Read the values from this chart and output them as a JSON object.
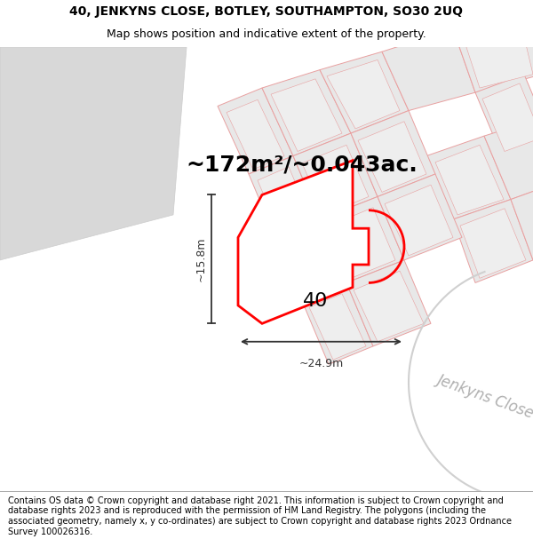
{
  "title_line1": "40, JENKYNS CLOSE, BOTLEY, SOUTHAMPTON, SO30 2UQ",
  "title_line2": "Map shows position and indicative extent of the property.",
  "area_label": "~172m²/~0.043ac.",
  "number_label": "40",
  "width_label": "~24.9m",
  "height_label": "~15.8m",
  "street_label": "Jenkyns Close",
  "footer_text": "Contains OS data © Crown copyright and database right 2021. This information is subject to Crown copyright and database rights 2023 and is reproduced with the permission of HM Land Registry. The polygons (including the associated geometry, namely x, y co-ordinates) are subject to Crown copyright and database rights 2023 Ordnance Survey 100026316.",
  "bg_color": "#f2f2f2",
  "property_color": "#ff0000",
  "building_face": "#e8e8e8",
  "building_edge": "#e8a0a0",
  "dim_color": "#333333",
  "title_fontsize": 10,
  "area_fontsize": 18,
  "number_fontsize": 16,
  "dim_fontsize": 9,
  "footer_fontsize": 7,
  "street_fontsize": 12
}
